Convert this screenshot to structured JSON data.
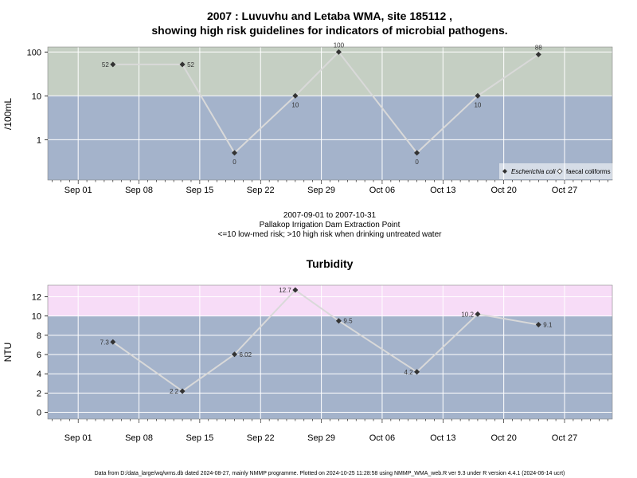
{
  "chart_data": [
    {
      "type": "line",
      "title_line1": "2007 : Luvuvhu and Letaba WMA, site 185112 ,",
      "title_line2": "showing high risk guidelines for indicators of microbial pathogens.",
      "ylabel": "/100mL",
      "y_scale": "log",
      "ylim": [
        0.12,
        130
      ],
      "y_ticks": [
        1,
        10,
        100
      ],
      "y_tick_labels": [
        "1",
        "10",
        "100"
      ],
      "guideline": 10,
      "colors": {
        "low_band": "#a4b3cb",
        "high_band": "#c5cfc3",
        "line": "#d9d9d9",
        "marker": "#333333"
      },
      "x_ticks": [
        "Sep 01",
        "Sep 08",
        "Sep 15",
        "Sep 22",
        "Sep 29",
        "Oct 06",
        "Oct 13",
        "Oct 20",
        "Oct 27"
      ],
      "series": [
        {
          "name": "Escherichia coli",
          "x": [
            "2007-09-05",
            "2007-09-13",
            "2007-09-19",
            "2007-09-26",
            "2007-10-01",
            "2007-10-10",
            "2007-10-17",
            "2007-10-24"
          ],
          "values": [
            52,
            52,
            0.5,
            10,
            100,
            0.5,
            10,
            88
          ],
          "labels": [
            "52",
            "52",
            "0",
            "10",
            "100",
            "0",
            "10",
            "88"
          ]
        }
      ],
      "legend": [
        {
          "name": "Escherichia coli",
          "marker": "filled-diamond"
        },
        {
          "name": "faecal coliforms",
          "marker": "open-diamond"
        }
      ],
      "legend_position": "bottom-right",
      "subtitle_lines": [
        "2007-09-01 to 2007-10-31",
        "Pallakop Irrigation Dam Extraction Point",
        "<=10 low-med risk; >10 high risk when drinking untreated water"
      ]
    },
    {
      "type": "line",
      "title": "Turbidity",
      "ylabel": "NTU",
      "ylim": [
        -0.7,
        13.2
      ],
      "y_ticks": [
        0,
        2,
        4,
        6,
        8,
        10,
        12
      ],
      "guideline": 10,
      "colors": {
        "low_band": "#a4b3cb",
        "high_band": "#f7dcf7",
        "line": "#d9d9d9",
        "marker": "#333333"
      },
      "x_ticks": [
        "Sep 01",
        "Sep 08",
        "Sep 15",
        "Sep 22",
        "Sep 29",
        "Oct 06",
        "Oct 13",
        "Oct 20",
        "Oct 27"
      ],
      "series": [
        {
          "x": [
            "2007-09-05",
            "2007-09-13",
            "2007-09-19",
            "2007-09-26",
            "2007-10-01",
            "2007-10-10",
            "2007-10-17",
            "2007-10-24"
          ],
          "values": [
            7.3,
            2.2,
            6.02,
            12.7,
            9.5,
            4.2,
            10.2,
            9.1
          ],
          "labels": [
            "7.3",
            "2.2",
            "6.02",
            "12.7",
            "9.5",
            "4.2",
            "10.2",
            "9.1"
          ]
        }
      ]
    }
  ],
  "footer": "Data from D:/data_large/wq/wms.db dated 2024-08-27, mainly NMMP programme. Plotted on 2024-10-25 11:28:58 using NMMP_WMA_web.R ver 9.3 under R version 4.4.1 (2024-06-14 ucrt)"
}
